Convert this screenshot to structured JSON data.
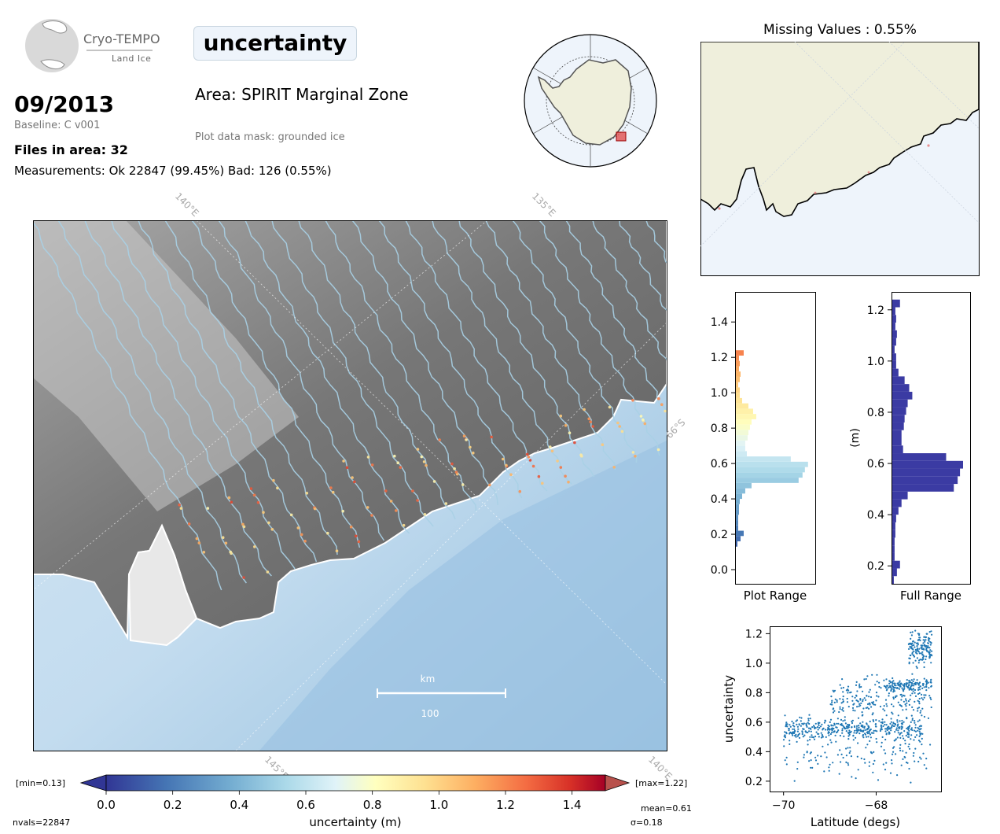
{
  "logo": {
    "name": "Cryo-TEMPO",
    "subtitle": "Land Ice"
  },
  "parameter": "uncertainty",
  "date": "09/2013",
  "baseline": "Baseline: C v001",
  "files_in_area": "Files in area: 32",
  "measurements": "Measurements: Ok 22847 (99.45%) Bad: 126 (0.55%)",
  "area": "Area: SPIRIT Marginal Zone",
  "mask": "Plot data mask: grounded ice",
  "missing_values": "Missing Values : 0.55%",
  "map": {
    "lon_labels": [
      "140°E",
      "135°E",
      "145°E",
      "140°E"
    ],
    "lat_label": "66°S",
    "scalebar_unit": "km",
    "scalebar_value": "100"
  },
  "colorbar": {
    "label": "uncertainty (m)",
    "min_label": "[min=0.13]",
    "max_label": "[max=1.22]",
    "ticks": [
      "0.0",
      "0.2",
      "0.4",
      "0.6",
      "0.8",
      "1.0",
      "1.2",
      "1.4"
    ],
    "range": [
      0.0,
      1.5
    ]
  },
  "stats": {
    "nvals": "nvals=22847",
    "mean": "mean=0.61",
    "sigma": "σ=0.18"
  },
  "colors": {
    "histogram_full": "#3b3ba3",
    "scatter": "#1f77b4",
    "ocean": "#c6dff0",
    "land": "#efefdc"
  },
  "chart_data": [
    {
      "type": "bar",
      "name": "Plot Range histogram",
      "orientation": "horizontal",
      "xlabel": "Plot Range",
      "ylim": [
        -0.08,
        1.57
      ],
      "yticks": [
        "0.0",
        "0.2",
        "0.4",
        "0.6",
        "0.8",
        "1.0",
        "1.2",
        "1.4"
      ],
      "bins": [
        0.13,
        0.16,
        0.19,
        0.22,
        0.25,
        0.28,
        0.31,
        0.34,
        0.37,
        0.4,
        0.43,
        0.46,
        0.49,
        0.52,
        0.55,
        0.58,
        0.61,
        0.64,
        0.67,
        0.7,
        0.73,
        0.76,
        0.79,
        0.82,
        0.85,
        0.88,
        0.91,
        0.94,
        0.97,
        1.0,
        1.03,
        1.06,
        1.09,
        1.12,
        1.15,
        1.18,
        1.21
      ],
      "values": [
        2,
        6,
        10,
        3,
        3,
        3,
        4,
        4,
        5,
        8,
        12,
        20,
        80,
        85,
        88,
        92,
        70,
        14,
        12,
        12,
        15,
        16,
        18,
        20,
        26,
        22,
        16,
        8,
        5,
        5,
        3,
        5,
        6,
        4,
        5,
        4,
        10
      ]
    },
    {
      "type": "bar",
      "name": "Full Range histogram",
      "orientation": "horizontal",
      "xlabel": "Full Range",
      "ylabel": "(m)",
      "ylim": [
        0.13,
        1.27
      ],
      "yticks": [
        "0.2",
        "0.4",
        "0.6",
        "0.8",
        "1.0",
        "1.2"
      ],
      "bins": [
        0.13,
        0.16,
        0.19,
        0.22,
        0.25,
        0.28,
        0.31,
        0.34,
        0.37,
        0.4,
        0.43,
        0.46,
        0.49,
        0.52,
        0.55,
        0.58,
        0.61,
        0.64,
        0.67,
        0.7,
        0.73,
        0.76,
        0.79,
        0.82,
        0.85,
        0.88,
        0.91,
        0.94,
        0.97,
        1.0,
        1.03,
        1.06,
        1.09,
        1.12,
        1.15,
        1.18,
        1.21
      ],
      "values": [
        2,
        6,
        10,
        3,
        3,
        3,
        4,
        4,
        5,
        8,
        12,
        20,
        80,
        85,
        88,
        92,
        70,
        14,
        12,
        12,
        15,
        16,
        18,
        20,
        26,
        22,
        16,
        8,
        5,
        5,
        3,
        5,
        6,
        4,
        5,
        4,
        10
      ]
    },
    {
      "type": "scatter",
      "name": "uncertainty vs latitude",
      "xlabel": "Latitude (degs)",
      "ylabel": "uncertainty",
      "xlim": [
        -70.3,
        -66.6
      ],
      "ylim": [
        0.13,
        1.25
      ],
      "xticks": [
        "−70",
        "−68"
      ],
      "yticks": [
        "0.2",
        "0.4",
        "0.6",
        "0.8",
        "1.0",
        "1.2"
      ],
      "series": [
        {
          "name": "",
          "clusters": [
            {
              "x_range": [
                -70.0,
                -67.0
              ],
              "y_center": 0.55,
              "y_spread": 0.06,
              "n": 420
            },
            {
              "x_range": [
                -69.0,
                -66.8
              ],
              "y_center": 0.75,
              "y_spread": 0.12,
              "n": 220
            },
            {
              "x_range": [
                -67.8,
                -66.8
              ],
              "y_center": 0.85,
              "y_spread": 0.03,
              "n": 120
            },
            {
              "x_range": [
                -67.3,
                -66.8
              ],
              "y_center": 1.1,
              "y_spread": 0.09,
              "n": 150
            },
            {
              "x_range": [
                -70.0,
                -66.8
              ],
              "y_center": 0.38,
              "y_spread": 0.12,
              "n": 130
            }
          ]
        }
      ]
    }
  ]
}
